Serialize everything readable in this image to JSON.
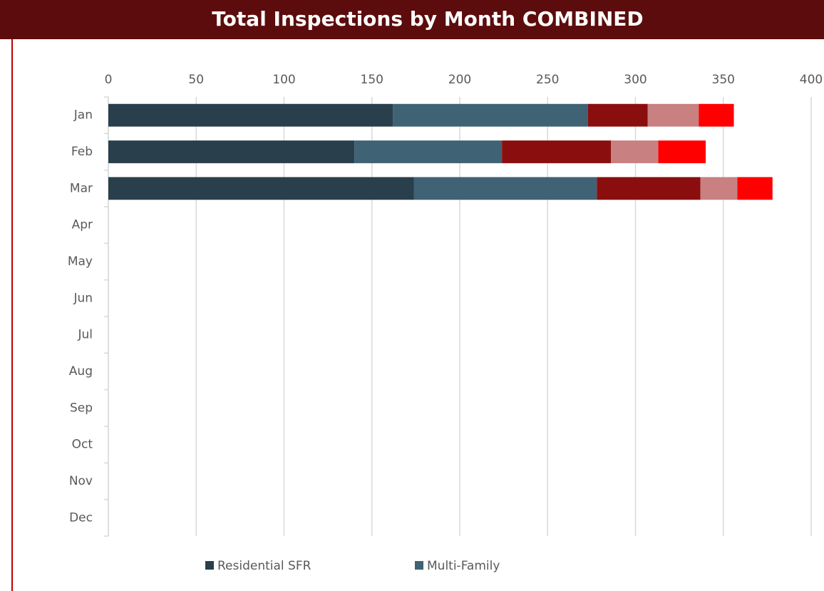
{
  "chart_data": {
    "type": "stacked-barh",
    "title": "Total Inspections by Month COMBINED",
    "categories": [
      "Jan",
      "Feb",
      "Mar",
      "Apr",
      "May",
      "Jun",
      "Jul",
      "Aug",
      "Sep",
      "Oct",
      "Nov",
      "Dec"
    ],
    "series": [
      {
        "name": "Residential SFR",
        "color": "#2a3f4c",
        "values": [
          162,
          140,
          174,
          null,
          null,
          null,
          null,
          null,
          null,
          null,
          null,
          null
        ]
      },
      {
        "name": "Multi-Family",
        "color": "#3f6275",
        "values": [
          111,
          84,
          104,
          null,
          null,
          null,
          null,
          null,
          null,
          null,
          null,
          null
        ]
      },
      {
        "color": "#8b0e0e",
        "values": [
          34,
          62,
          59,
          null,
          null,
          null,
          null,
          null,
          null,
          null,
          null,
          null
        ]
      },
      {
        "color": "#c98080",
        "values": [
          29,
          27,
          21,
          null,
          null,
          null,
          null,
          null,
          null,
          null,
          null,
          null
        ]
      },
      {
        "color": "#ff0000",
        "values": [
          20,
          27,
          20,
          null,
          null,
          null,
          null,
          null,
          null,
          null,
          null,
          null
        ]
      }
    ],
    "xlim": [
      0,
      400
    ],
    "xticks": [
      0,
      50,
      100,
      150,
      200,
      250,
      300,
      350,
      400
    ],
    "grid": true,
    "legend": "bottom"
  }
}
